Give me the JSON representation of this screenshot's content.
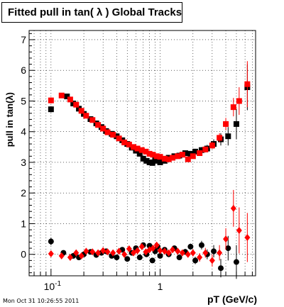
{
  "chart_data": {
    "type": "scatter",
    "title": "Fitted pull in tan( λ )  Global Tracks",
    "xlabel": "pT (GeV/c)",
    "ylabel": "pull in tan(λ)",
    "x_scale": "log",
    "xlim": [
      0.063,
      7.5
    ],
    "ylim": [
      -0.7,
      7.3
    ],
    "x_tick_labels": [
      {
        "value": 0.1,
        "label": "10",
        "sup": "-1"
      },
      {
        "value": 1,
        "label": "1"
      }
    ],
    "y_ticks": [
      0,
      1,
      2,
      3,
      4,
      5,
      6,
      7
    ],
    "grid": true,
    "colors": {
      "series_black": "#000000",
      "series_red": "#ff0000"
    },
    "series": [
      {
        "name": "",
        "color": "#000000",
        "marker": "square",
        "points": [
          [
            0.1,
            4.73
          ],
          [
            0.14,
            5.15
          ],
          [
            0.16,
            4.92
          ],
          [
            0.18,
            4.75
          ],
          [
            0.2,
            4.58
          ],
          [
            0.23,
            4.41
          ],
          [
            0.26,
            4.27
          ],
          [
            0.29,
            4.15
          ],
          [
            0.32,
            4.02
          ],
          [
            0.36,
            3.93
          ],
          [
            0.4,
            3.85
          ],
          [
            0.45,
            3.72
          ],
          [
            0.5,
            3.6
          ],
          [
            0.55,
            3.48
          ],
          [
            0.6,
            3.38
          ],
          [
            0.65,
            3.28
          ],
          [
            0.7,
            3.12
          ],
          [
            0.75,
            3.05
          ],
          [
            0.8,
            3.0
          ],
          [
            0.85,
            2.98
          ],
          [
            0.9,
            3.1
          ],
          [
            0.95,
            3.05
          ],
          [
            1.0,
            3.0
          ],
          [
            1.1,
            3.05
          ],
          [
            1.2,
            3.15
          ],
          [
            1.35,
            3.2
          ],
          [
            1.5,
            3.22
          ],
          [
            1.7,
            3.3
          ],
          [
            1.9,
            3.28
          ],
          [
            2.1,
            3.35
          ],
          [
            2.4,
            3.4
          ],
          [
            2.7,
            3.45
          ],
          [
            3.1,
            3.6
          ],
          [
            3.6,
            3.75
          ],
          [
            4.2,
            3.85
          ],
          [
            5.0,
            4.25
          ],
          [
            6.3,
            5.45
          ]
        ],
        "errors": [
          0.1,
          0.05,
          0.05,
          0.05,
          0.05,
          0.05,
          0.05,
          0.05,
          0.05,
          0.05,
          0.05,
          0.05,
          0.05,
          0.05,
          0.05,
          0.05,
          0.05,
          0.05,
          0.05,
          0.05,
          0.05,
          0.05,
          0.05,
          0.05,
          0.05,
          0.06,
          0.06,
          0.07,
          0.08,
          0.09,
          0.1,
          0.12,
          0.15,
          0.2,
          0.3,
          0.5,
          0.75
        ]
      },
      {
        "name": "",
        "color": "#ff0000",
        "marker": "square",
        "points": [
          [
            0.1,
            5.02
          ],
          [
            0.125,
            5.18
          ],
          [
            0.15,
            5.05
          ],
          [
            0.17,
            4.88
          ],
          [
            0.19,
            4.68
          ],
          [
            0.21,
            4.52
          ],
          [
            0.24,
            4.38
          ],
          [
            0.27,
            4.22
          ],
          [
            0.3,
            4.1
          ],
          [
            0.33,
            3.98
          ],
          [
            0.37,
            3.9
          ],
          [
            0.42,
            3.78
          ],
          [
            0.47,
            3.65
          ],
          [
            0.52,
            3.58
          ],
          [
            0.57,
            3.5
          ],
          [
            0.62,
            3.45
          ],
          [
            0.68,
            3.4
          ],
          [
            0.74,
            3.35
          ],
          [
            0.8,
            3.28
          ],
          [
            0.86,
            3.25
          ],
          [
            0.93,
            3.2
          ],
          [
            1.0,
            3.18
          ],
          [
            1.1,
            3.12
          ],
          [
            1.2,
            3.1
          ],
          [
            1.3,
            3.15
          ],
          [
            1.45,
            3.2
          ],
          [
            1.6,
            3.25
          ],
          [
            1.8,
            3.1
          ],
          [
            2.0,
            3.2
          ],
          [
            2.3,
            3.3
          ],
          [
            2.6,
            3.42
          ],
          [
            3.0,
            3.55
          ],
          [
            3.5,
            3.8
          ],
          [
            4.0,
            4.25
          ],
          [
            4.7,
            4.8
          ],
          [
            5.3,
            5.0
          ],
          [
            6.3,
            5.55
          ]
        ],
        "errors": [
          0.1,
          0.05,
          0.05,
          0.05,
          0.05,
          0.05,
          0.05,
          0.05,
          0.05,
          0.05,
          0.05,
          0.05,
          0.05,
          0.05,
          0.05,
          0.05,
          0.05,
          0.05,
          0.05,
          0.05,
          0.05,
          0.05,
          0.05,
          0.05,
          0.05,
          0.06,
          0.06,
          0.07,
          0.08,
          0.09,
          0.1,
          0.12,
          0.15,
          0.2,
          0.3,
          0.45,
          0.75
        ]
      },
      {
        "name": "",
        "color": "#000000",
        "marker": "circle",
        "points": [
          [
            0.1,
            0.42
          ],
          [
            0.13,
            0.05
          ],
          [
            0.16,
            -0.05
          ],
          [
            0.18,
            -0.1
          ],
          [
            0.2,
            0.0
          ],
          [
            0.23,
            0.08
          ],
          [
            0.26,
            -0.02
          ],
          [
            0.29,
            0.05
          ],
          [
            0.32,
            0.1
          ],
          [
            0.36,
            -0.05
          ],
          [
            0.4,
            -0.1
          ],
          [
            0.45,
            0.15
          ],
          [
            0.5,
            -0.15
          ],
          [
            0.55,
            0.05
          ],
          [
            0.6,
            0.2
          ],
          [
            0.65,
            -0.1
          ],
          [
            0.7,
            0.3
          ],
          [
            0.75,
            0.0
          ],
          [
            0.8,
            0.28
          ],
          [
            0.85,
            -0.2
          ],
          [
            0.9,
            0.1
          ],
          [
            0.95,
            0.25
          ],
          [
            1.0,
            -0.05
          ],
          [
            1.1,
            0.15
          ],
          [
            1.2,
            0.0
          ],
          [
            1.35,
            0.2
          ],
          [
            1.5,
            -0.1
          ],
          [
            1.7,
            0.08
          ],
          [
            1.9,
            0.25
          ],
          [
            2.1,
            -0.2
          ],
          [
            2.4,
            0.3
          ],
          [
            2.7,
            0.0
          ],
          [
            3.1,
            0.1
          ],
          [
            3.6,
            -0.45
          ],
          [
            4.2,
            0.2
          ],
          [
            5.0,
            -0.25
          ]
        ],
        "errors": [
          0.12,
          0.06,
          0.06,
          0.06,
          0.06,
          0.06,
          0.06,
          0.06,
          0.06,
          0.06,
          0.06,
          0.06,
          0.06,
          0.06,
          0.06,
          0.06,
          0.06,
          0.06,
          0.06,
          0.06,
          0.06,
          0.06,
          0.06,
          0.08,
          0.08,
          0.08,
          0.08,
          0.1,
          0.1,
          0.12,
          0.14,
          0.16,
          0.2,
          0.3,
          0.4,
          0.55
        ]
      },
      {
        "name": "",
        "color": "#ff0000",
        "marker": "diamond",
        "points": [
          [
            0.1,
            0.02
          ],
          [
            0.125,
            -0.05
          ],
          [
            0.15,
            -0.1
          ],
          [
            0.17,
            0.05
          ],
          [
            0.19,
            -0.05
          ],
          [
            0.21,
            0.1
          ],
          [
            0.24,
            0.08
          ],
          [
            0.27,
            0.05
          ],
          [
            0.3,
            0.12
          ],
          [
            0.33,
            0.08
          ],
          [
            0.37,
            0.05
          ],
          [
            0.42,
            0.1
          ],
          [
            0.47,
            0.0
          ],
          [
            0.52,
            0.18
          ],
          [
            0.57,
            0.05
          ],
          [
            0.62,
            0.12
          ],
          [
            0.68,
            0.25
          ],
          [
            0.74,
            0.08
          ],
          [
            0.8,
            0.15
          ],
          [
            0.86,
            0.2
          ],
          [
            0.93,
            0.3
          ],
          [
            1.0,
            0.12
          ],
          [
            1.1,
            0.1
          ],
          [
            1.2,
            0.05
          ],
          [
            1.3,
            0.15
          ],
          [
            1.45,
            0.1
          ],
          [
            1.6,
            0.05
          ],
          [
            1.8,
            0.0
          ],
          [
            2.0,
            0.05
          ],
          [
            2.3,
            -0.1
          ],
          [
            2.6,
            0.05
          ],
          [
            3.0,
            -0.2
          ],
          [
            3.5,
            0.05
          ],
          [
            4.0,
            0.5
          ],
          [
            4.7,
            1.5
          ],
          [
            5.3,
            0.78
          ],
          [
            6.3,
            0.55
          ]
        ],
        "errors": [
          0.08,
          0.05,
          0.05,
          0.05,
          0.05,
          0.05,
          0.05,
          0.05,
          0.05,
          0.05,
          0.05,
          0.05,
          0.05,
          0.05,
          0.05,
          0.05,
          0.05,
          0.05,
          0.05,
          0.05,
          0.05,
          0.05,
          0.05,
          0.06,
          0.06,
          0.07,
          0.08,
          0.1,
          0.12,
          0.14,
          0.16,
          0.2,
          0.25,
          0.35,
          0.6,
          0.75,
          0.8
        ]
      }
    ]
  },
  "footer": {
    "timestamp": "Mon Oct 31 10:26:55 2011"
  }
}
